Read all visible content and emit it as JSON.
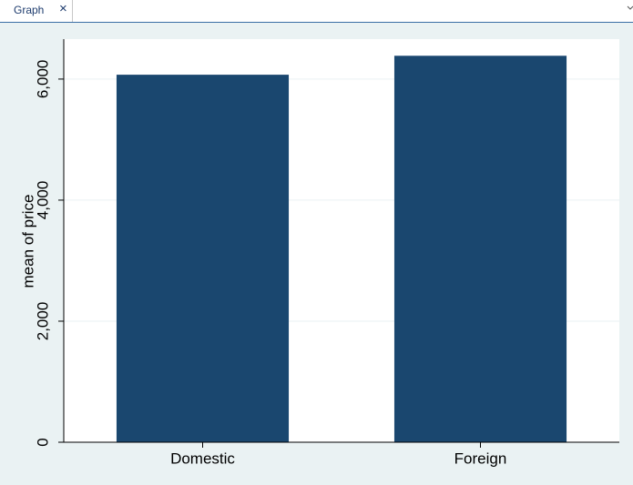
{
  "tab": {
    "label": "Graph",
    "close": "×"
  },
  "chart_data": {
    "type": "bar",
    "y_label": "mean of price",
    "categories": [
      "Domestic",
      "Foreign"
    ],
    "values": [
      6072,
      6385
    ],
    "color": "#1a476f",
    "ylim": [
      0,
      6660
    ],
    "yticks": [
      0,
      {
        "value": 2000,
        "label": "2,000"
      },
      {
        "value": 4000,
        "label": "4,000"
      },
      {
        "value": 6000,
        "label": "6,000"
      }
    ],
    "grid": true
  }
}
